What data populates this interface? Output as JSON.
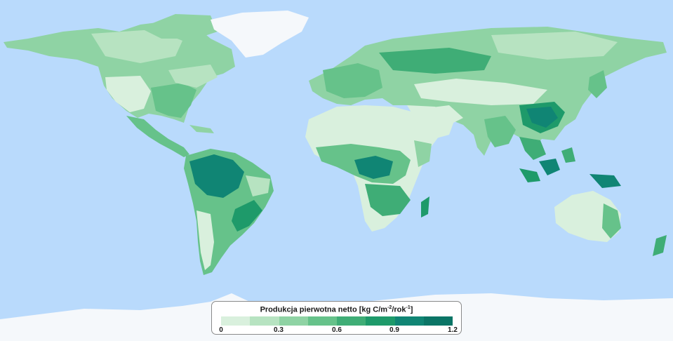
{
  "colors": {
    "ocean": "#b9dafc",
    "ice": "#f5f8fb",
    "classes": [
      "#d9f0dd",
      "#b7e3c1",
      "#8fd3a4",
      "#66c28a",
      "#3fad76",
      "#1e9a6a",
      "#108574",
      "#0b7566"
    ]
  },
  "legend": {
    "title_main": "Produkcja pierwotna netto [kg C/m",
    "title_sup1": "-2",
    "title_mid": "/rok",
    "title_sup2": "-1",
    "title_end": "]",
    "ticks": [
      "0",
      "0.3",
      "0.6",
      "0.9",
      "1.2"
    ],
    "range": [
      0,
      1.2
    ]
  }
}
